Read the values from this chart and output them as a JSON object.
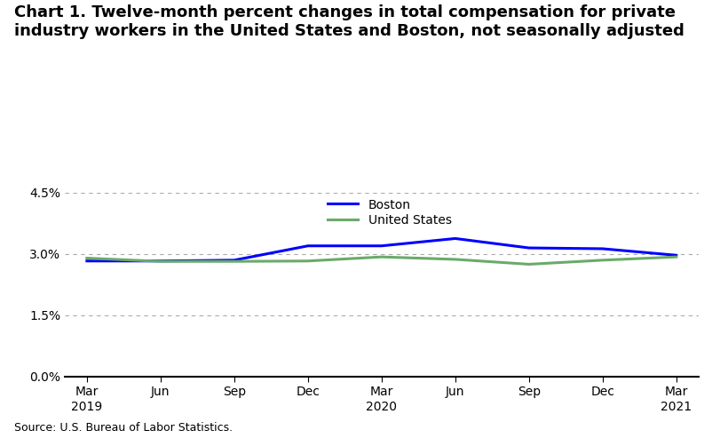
{
  "title": "Chart 1. Twelve-month percent changes in total compensation for private\nindustry workers in the United States and Boston, not seasonally adjusted",
  "source": "Source: U.S. Bureau of Labor Statistics.",
  "x_labels": [
    "Mar\n2019",
    "Jun",
    "Sep",
    "Dec",
    "Mar\n2020",
    "Jun",
    "Sep",
    "Dec",
    "Mar\n2021"
  ],
  "boston_values": [
    2.83,
    2.83,
    2.85,
    3.2,
    3.2,
    3.38,
    3.15,
    3.13,
    2.97
  ],
  "us_values": [
    2.9,
    2.82,
    2.82,
    2.83,
    2.93,
    2.87,
    2.75,
    2.85,
    2.93
  ],
  "boston_color": "#0000FF",
  "us_color": "#6aaa6a",
  "ylim": [
    0.0,
    4.5
  ],
  "yticks": [
    0.0,
    1.5,
    3.0,
    4.5
  ],
  "ytick_labels": [
    "0.0%",
    "1.5%",
    "3.0%",
    "4.5%"
  ],
  "legend_labels": [
    "Boston",
    "United States"
  ],
  "background_color": "#ffffff",
  "line_width": 2.2,
  "title_fontsize": 13,
  "axis_fontsize": 10,
  "legend_fontsize": 10,
  "source_fontsize": 9
}
